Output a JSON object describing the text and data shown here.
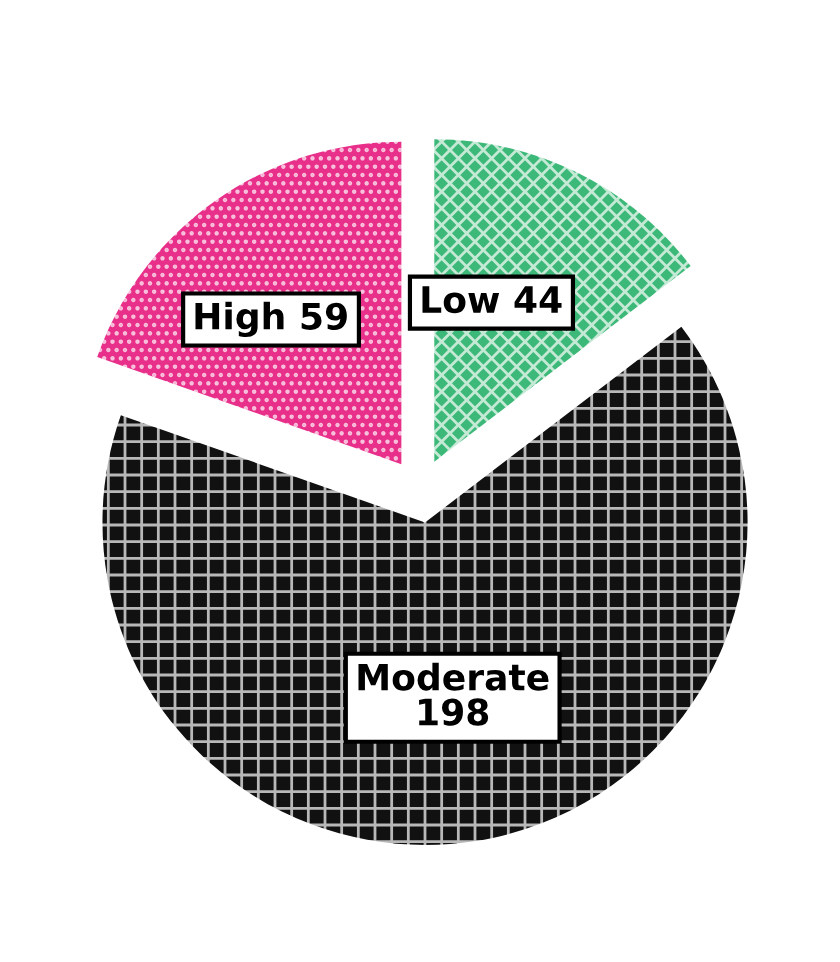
{
  "chart_data": {
    "type": "pie",
    "categories": [
      "Low",
      "Moderate",
      "High"
    ],
    "values": [
      44,
      198,
      59
    ],
    "colors": [
      "#3cb878",
      "#111111",
      "#e8308a"
    ],
    "data_labels": true
  }
}
